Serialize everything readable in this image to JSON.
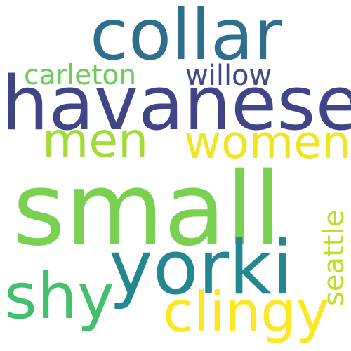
{
  "colors": {
    "background": "#ffffff",
    "collar": "#2e6f8e",
    "havanese": "#414487",
    "carleton": "#6ccd5a",
    "willow": "#3e4a89",
    "men": "#a2da37",
    "women": "#f1e51d",
    "small": "#7ad151",
    "yorki": "#24868e",
    "shy": "#44bf70",
    "clingy": "#fde725",
    "seattle": "#bddf26"
  },
  "words": {
    "collar": "collar",
    "havanese": "havanese",
    "carleton": "carleton",
    "willow": "willow",
    "men": "men",
    "women": "women",
    "small": "small",
    "yorki": "yorki",
    "shy": "shy",
    "clingy": "clingy",
    "seattle": "seattle"
  }
}
